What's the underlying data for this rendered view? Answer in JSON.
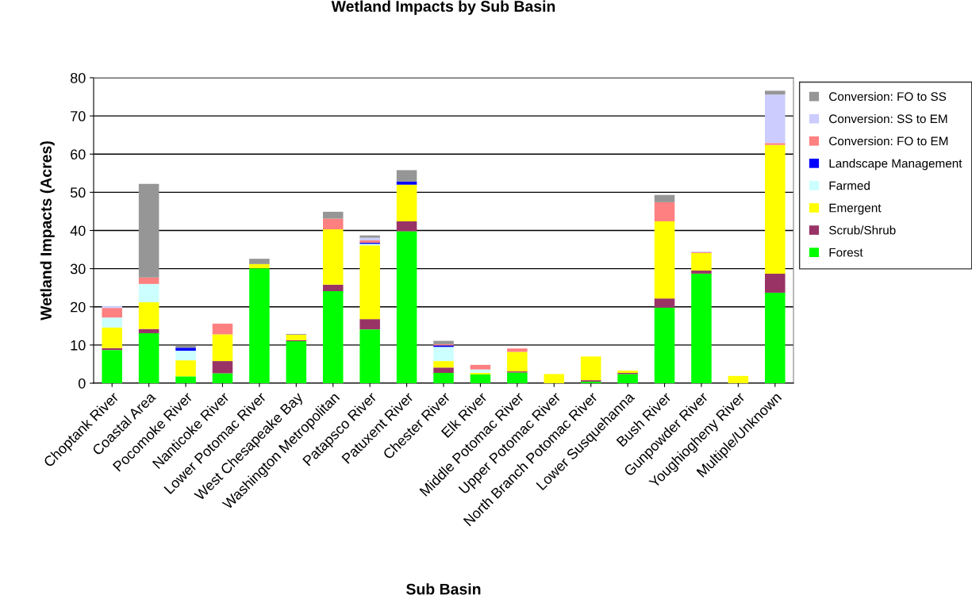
{
  "chart_data": {
    "type": "bar",
    "stacked": true,
    "title": "Wetland Impacts by Sub Basin",
    "xlabel": "Sub Basin",
    "ylabel": "Wetland Impacts (Acres)",
    "categories": [
      "Choptank River",
      "Coastal Area",
      "Pocomoke River",
      "Nanticoke River",
      "Lower Potomac River",
      "West Chesapeake Bay",
      "Washington Metropolitan",
      "Patapsco River",
      "Patuxent River",
      "Chester River",
      "Elk River",
      "Middle Potomac River",
      "Upper Potomac River",
      "North Branch Potomac River",
      "Lower Susquehanna",
      "Bush River",
      "Gunpowder River",
      "Youghiogheny River",
      "Multiple/Unknown"
    ],
    "series": [
      {
        "name": "Forest",
        "color": "#00ff00",
        "values": [
          8.7,
          13.1,
          1.8,
          2.6,
          30.1,
          11.0,
          24.1,
          14.1,
          39.8,
          2.7,
          2.3,
          2.8,
          0,
          0.4,
          2.4,
          19.8,
          28.7,
          0,
          23.7
        ]
      },
      {
        "name": "Scrub/Shrub",
        "color": "#993366",
        "values": [
          0.5,
          1.1,
          0,
          3.2,
          0,
          0.3,
          1.7,
          2.7,
          2.6,
          1.4,
          null,
          0.3,
          0,
          0.4,
          0.3,
          2.4,
          0.8,
          0,
          5.0
        ]
      },
      {
        "name": "Emergent",
        "color": "#ffff00",
        "values": [
          5.4,
          7.0,
          4.2,
          7.0,
          1.1,
          1.4,
          14.5,
          19.3,
          9.6,
          1.7,
          0.4,
          5.1,
          2.4,
          6.2,
          0.6,
          20.2,
          4.6,
          1.9,
          33.7
        ]
      },
      {
        "name": "Farmed",
        "color": "#ccffff",
        "values": [
          2.6,
          4.8,
          2.5,
          0,
          0,
          0,
          0,
          0.4,
          0,
          3.7,
          0.9,
          0,
          0,
          0,
          0,
          0,
          0,
          0,
          0
        ]
      },
      {
        "name": "Landscape Management",
        "color": "#0000ff",
        "values": [
          0,
          0,
          0.8,
          0,
          0,
          0,
          0,
          0.3,
          0.8,
          0.4,
          0,
          0,
          0,
          0,
          0,
          0,
          0,
          0,
          0
        ]
      },
      {
        "name": "Conversion: FO to EM",
        "color": "#ff8080",
        "values": [
          2.5,
          1.7,
          0,
          2.8,
          0,
          0,
          2.8,
          0.6,
          0,
          0.3,
          1.2,
          0.9,
          0,
          0,
          0,
          5.0,
          0.2,
          0,
          0.5
        ]
      },
      {
        "name": "Conversion: SS to EM",
        "color": "#ccccff",
        "values": [
          0.5,
          0,
          0,
          0,
          0,
          0,
          0,
          0.7,
          0,
          0,
          0,
          0,
          0,
          0,
          0,
          0,
          0.2,
          0,
          12.7
        ]
      },
      {
        "name": "Conversion: FO to SS",
        "color": "#969696",
        "values": [
          0,
          24.5,
          0.5,
          0,
          1.4,
          0.2,
          1.8,
          0.6,
          3.0,
          0.9,
          null,
          0,
          0,
          0,
          0,
          1.9,
          0,
          0,
          1.0
        ]
      }
    ],
    "ylim": [
      0,
      80
    ],
    "yticks": [
      0,
      10,
      20,
      30,
      40,
      50,
      60,
      70,
      80
    ],
    "grid": "y",
    "legend": "right"
  }
}
